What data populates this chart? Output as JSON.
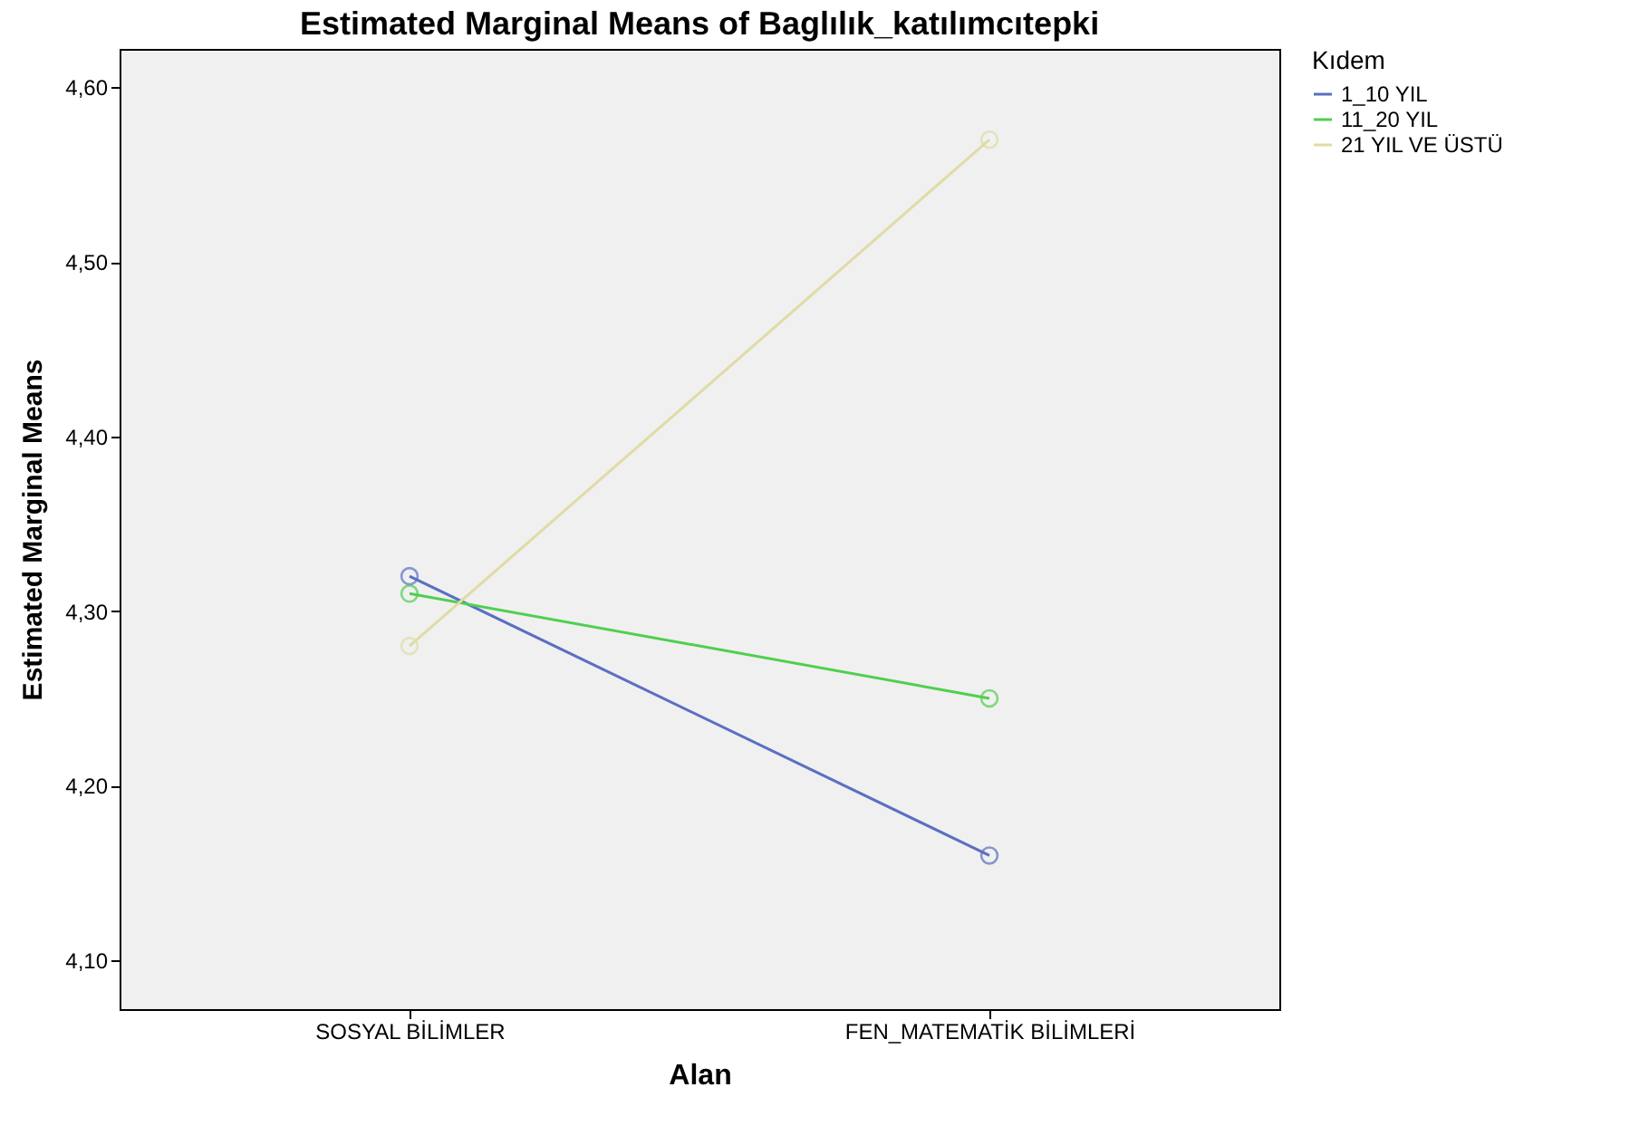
{
  "chart_data": {
    "type": "line",
    "title": "Estimated Marginal Means of Baglılık_katılımcıtepki",
    "xlabel": "Alan",
    "ylabel": "Estimated Marginal Means",
    "legend_title": "Kıdem",
    "categories": [
      "SOSYAL BİLİMLER",
      "FEN_MATEMATİK BİLİMLERİ"
    ],
    "series": [
      {
        "name": "1_10 YIL",
        "color": "#5b6fc2",
        "values": [
          4.32,
          4.16
        ]
      },
      {
        "name": "11_20 YIL",
        "color": "#4fcf4f",
        "values": [
          4.31,
          4.25
        ]
      },
      {
        "name": "21 YIL VE ÜSTÜ",
        "color": "#e0dba6",
        "values": [
          4.28,
          4.57
        ]
      }
    ],
    "ylim": [
      4.072,
      4.622
    ],
    "yticks": [
      {
        "value": 4.1,
        "label": "4,10"
      },
      {
        "value": 4.2,
        "label": "4,20"
      },
      {
        "value": 4.3,
        "label": "4,30"
      },
      {
        "value": 4.4,
        "label": "4,40"
      },
      {
        "value": 4.5,
        "label": "4,50"
      },
      {
        "value": 4.6,
        "label": "4,60"
      }
    ],
    "grid": false,
    "legend": "top right",
    "marker": "circle",
    "line_style": "solid"
  }
}
